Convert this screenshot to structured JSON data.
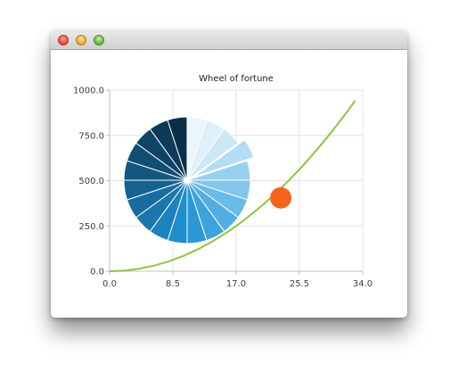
{
  "window": {
    "title": ""
  },
  "chart_data": [
    {
      "type": "line",
      "title": "Wheel of fortune",
      "xlabel": "",
      "ylabel": "",
      "xlim": [
        0.0,
        34.0
      ],
      "ylim": [
        0.0,
        1000.0
      ],
      "x_ticks": [
        "0.0",
        "8.5",
        "17.0",
        "25.5",
        "34.0"
      ],
      "y_ticks": [
        "0.0",
        "250.0",
        "500.0",
        "750.0",
        "1000.0"
      ],
      "grid": true,
      "series": [
        {
          "color": "#8cc63f",
          "points": [
            [
              0,
              0
            ],
            [
              2,
              3
            ],
            [
              4,
              14
            ],
            [
              6,
              31
            ],
            [
              8,
              55
            ],
            [
              10,
              86
            ],
            [
              12,
              124
            ],
            [
              14,
              169
            ],
            [
              16,
              221
            ],
            [
              18,
              280
            ],
            [
              20,
              346
            ],
            [
              22,
              418
            ],
            [
              24,
              498
            ],
            [
              26,
              584
            ],
            [
              28,
              678
            ],
            [
              30,
              778
            ],
            [
              32,
              885
            ],
            [
              33,
              942
            ]
          ]
        }
      ],
      "marker": {
        "x": 23,
        "y": 405,
        "color": "#f7631d"
      }
    },
    {
      "type": "pie",
      "slices": 20,
      "values": [
        1,
        1,
        1,
        1,
        1,
        1,
        1,
        1,
        1,
        1,
        1,
        1,
        1,
        1,
        1,
        1,
        1,
        1,
        1,
        1
      ],
      "exploded_slice": 3,
      "colors": [
        "#eaf5fc",
        "#dff0fa",
        "#cce8f7",
        "#b2ddf3",
        "#98d1ef",
        "#82c6ec",
        "#6bbbe8",
        "#52aee2",
        "#3da3dc",
        "#2b98d5",
        "#1f8dcc",
        "#1c82be",
        "#1a77ae",
        "#176c9e",
        "#15628f",
        "#135881",
        "#114e73",
        "#0f4465",
        "#0d3a57",
        "#0a3049"
      ]
    }
  ]
}
